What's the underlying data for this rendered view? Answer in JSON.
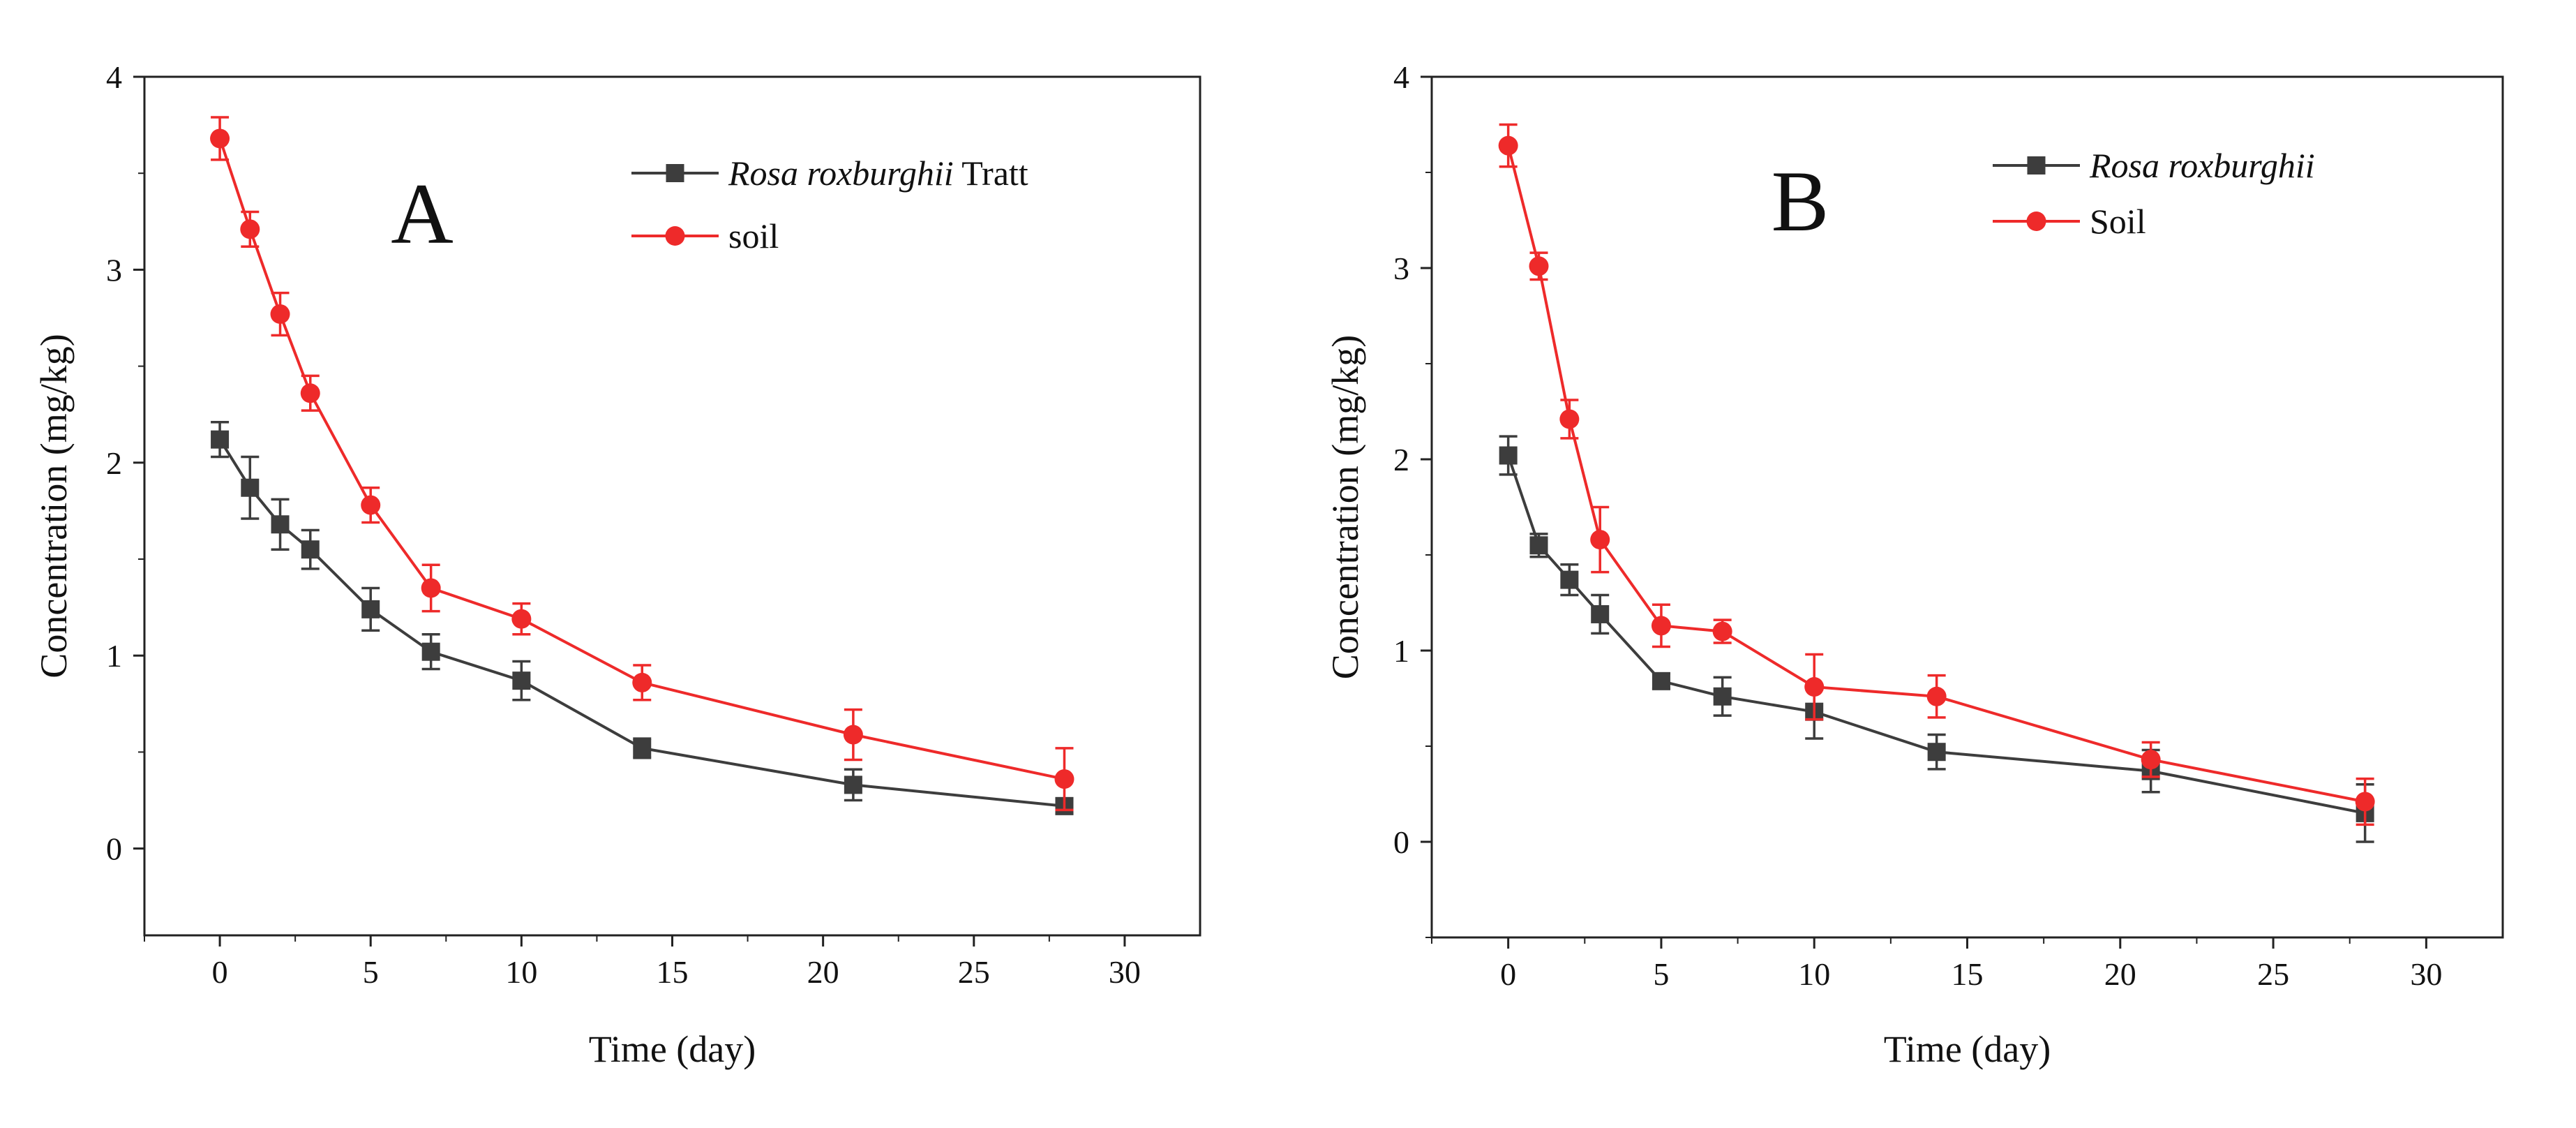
{
  "colors": {
    "series_gray": "#3d3d3d",
    "series_red": "#ee2a2a",
    "axis": "#222222"
  },
  "chart_data": [
    {
      "panel": "A",
      "type": "line",
      "xlabel": "Time (day)",
      "ylabel": "Concentration (mg/kg)",
      "xlim": [
        -2.5,
        32.5
      ],
      "ylim": [
        -0.45,
        4.0
      ],
      "xticks": [
        0,
        5,
        10,
        15,
        20,
        25,
        30
      ],
      "yticks": [
        0,
        1,
        2,
        3,
        4
      ],
      "legend_position": "top-right",
      "series": [
        {
          "name_italic": "Rosa roxburghii",
          "name_suffix": " Tratt",
          "marker": "square",
          "color": "#3d3d3d",
          "x": [
            0,
            1,
            2,
            3,
            5,
            7,
            10,
            14,
            21,
            28
          ],
          "y": [
            2.12,
            1.87,
            1.68,
            1.55,
            1.24,
            1.02,
            0.87,
            0.52,
            0.33,
            0.22
          ],
          "err": [
            0.09,
            0.16,
            0.13,
            0.1,
            0.11,
            0.09,
            0.1,
            0.05,
            0.08,
            0.04
          ]
        },
        {
          "name_italic": "",
          "name_suffix": "soil",
          "marker": "circle",
          "color": "#ee2a2a",
          "x": [
            0,
            1,
            2,
            3,
            5,
            7,
            10,
            14,
            21,
            28
          ],
          "y": [
            3.68,
            3.21,
            2.77,
            2.36,
            1.78,
            1.35,
            1.19,
            0.86,
            0.59,
            0.36
          ],
          "err": [
            0.11,
            0.09,
            0.11,
            0.09,
            0.09,
            0.12,
            0.08,
            0.09,
            0.13,
            0.16
          ]
        }
      ]
    },
    {
      "panel": "B",
      "type": "line",
      "xlabel": "Time (day)",
      "ylabel": "Concentration (mg/kg)",
      "xlim": [
        -2.5,
        32.5
      ],
      "ylim": [
        -0.5,
        4.0
      ],
      "xticks": [
        0,
        5,
        10,
        15,
        20,
        25,
        30
      ],
      "yticks": [
        0,
        1,
        2,
        3,
        4
      ],
      "legend_position": "top-right",
      "series": [
        {
          "name_italic": "Rosa roxburghii",
          "name_suffix": "",
          "marker": "square",
          "color": "#3d3d3d",
          "x": [
            0,
            1,
            2,
            3,
            5,
            7,
            10,
            14,
            21,
            28
          ],
          "y": [
            2.02,
            1.55,
            1.37,
            1.19,
            0.84,
            0.76,
            0.68,
            0.47,
            0.37,
            0.15
          ],
          "err": [
            0.1,
            0.06,
            0.08,
            0.1,
            0.04,
            0.1,
            0.14,
            0.09,
            0.11,
            0.15
          ]
        },
        {
          "name_italic": "",
          "name_suffix": "Soil",
          "marker": "circle",
          "color": "#ee2a2a",
          "x": [
            0,
            1,
            2,
            3,
            5,
            7,
            10,
            14,
            21,
            28
          ],
          "y": [
            3.64,
            3.01,
            2.21,
            1.58,
            1.13,
            1.1,
            0.81,
            0.76,
            0.43,
            0.21
          ],
          "err": [
            0.11,
            0.07,
            0.1,
            0.17,
            0.11,
            0.06,
            0.17,
            0.11,
            0.09,
            0.12
          ]
        }
      ]
    }
  ]
}
